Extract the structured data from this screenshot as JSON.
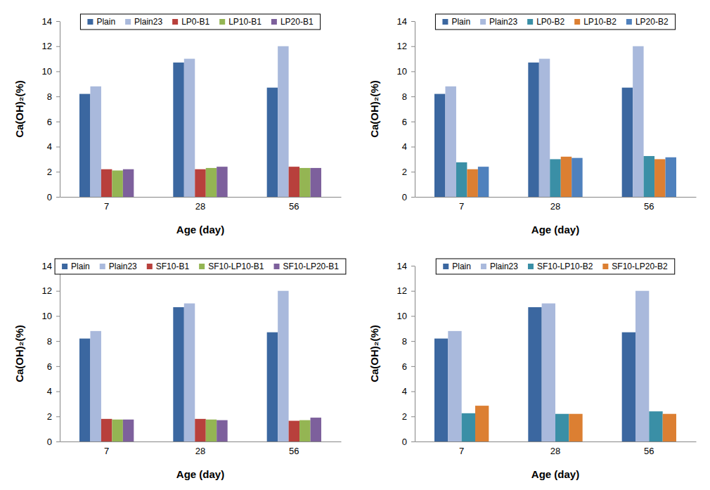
{
  "chart_data": [
    {
      "type": "bar",
      "x_label": "Age (day)",
      "y_label": "Ca(OH)₂(%)",
      "categories": [
        "7",
        "28",
        "56"
      ],
      "ylim": [
        0,
        14
      ],
      "yticks": [
        0,
        2,
        4,
        6,
        8,
        10,
        12,
        14
      ],
      "legend": "top",
      "series": [
        {
          "name": "Plain",
          "color": "#3b67a0",
          "values": [
            8.2,
            10.7,
            8.7
          ]
        },
        {
          "name": "Plain23",
          "color": "#a9b9dc",
          "values": [
            8.8,
            11.0,
            12.0
          ]
        },
        {
          "name": "LP0-B1",
          "color": "#b8403c",
          "values": [
            2.2,
            2.2,
            2.4
          ]
        },
        {
          "name": "LP10-B1",
          "color": "#94b553",
          "values": [
            2.1,
            2.3,
            2.3
          ]
        },
        {
          "name": "LP20-B1",
          "color": "#7d609c",
          "values": [
            2.2,
            2.4,
            2.3
          ]
        }
      ]
    },
    {
      "type": "bar",
      "x_label": "Age (day)",
      "y_label": "Ca(OH)₂(%)",
      "categories": [
        "7",
        "28",
        "56"
      ],
      "ylim": [
        0,
        14
      ],
      "yticks": [
        0,
        2,
        4,
        6,
        8,
        10,
        12,
        14
      ],
      "legend": "top",
      "series": [
        {
          "name": "Plain",
          "color": "#3b67a0",
          "values": [
            8.2,
            10.7,
            8.7
          ]
        },
        {
          "name": "Plain23",
          "color": "#a9b9dc",
          "values": [
            8.8,
            11.0,
            12.0
          ]
        },
        {
          "name": "LP0-B2",
          "color": "#3a8fa6",
          "values": [
            2.75,
            3.0,
            3.25
          ]
        },
        {
          "name": "LP10-B2",
          "color": "#dc7f32",
          "values": [
            2.2,
            3.2,
            3.0
          ]
        },
        {
          "name": "LP20-B2",
          "color": "#4f81bd",
          "values": [
            2.4,
            3.1,
            3.15
          ]
        }
      ]
    },
    {
      "type": "bar",
      "x_label": "Age (day)",
      "y_label": "Ca(OH)₂(%)",
      "categories": [
        "7",
        "28",
        "56"
      ],
      "ylim": [
        0,
        14
      ],
      "yticks": [
        0,
        2,
        4,
        6,
        8,
        10,
        12,
        14
      ],
      "legend": "top",
      "series": [
        {
          "name": "Plain",
          "color": "#3b67a0",
          "values": [
            8.2,
            10.7,
            8.7
          ]
        },
        {
          "name": "Plain23",
          "color": "#a9b9dc",
          "values": [
            8.8,
            11.0,
            12.0
          ]
        },
        {
          "name": "SF10-B1",
          "color": "#b8403c",
          "values": [
            1.8,
            1.8,
            1.65
          ]
        },
        {
          "name": "SF10-LP10-B1",
          "color": "#94b553",
          "values": [
            1.75,
            1.75,
            1.7
          ]
        },
        {
          "name": "SF10-LP20-B1",
          "color": "#7d609c",
          "values": [
            1.75,
            1.7,
            1.9
          ]
        }
      ]
    },
    {
      "type": "bar",
      "x_label": "Age (day)",
      "y_label": "Ca(OH)₂(%)",
      "categories": [
        "7",
        "28",
        "56"
      ],
      "ylim": [
        0,
        14
      ],
      "yticks": [
        0,
        2,
        4,
        6,
        8,
        10,
        12,
        14
      ],
      "legend": "top",
      "series": [
        {
          "name": "Plain",
          "color": "#3b67a0",
          "values": [
            8.2,
            10.7,
            8.7
          ]
        },
        {
          "name": "Plain23",
          "color": "#a9b9dc",
          "values": [
            8.8,
            11.0,
            12.0
          ]
        },
        {
          "name": "SF10-LP10-B2",
          "color": "#3a8fa6",
          "values": [
            2.25,
            2.2,
            2.4
          ]
        },
        {
          "name": "SF10-LP20-B2",
          "color": "#dc7f32",
          "values": [
            2.85,
            2.2,
            2.2
          ]
        }
      ]
    }
  ]
}
